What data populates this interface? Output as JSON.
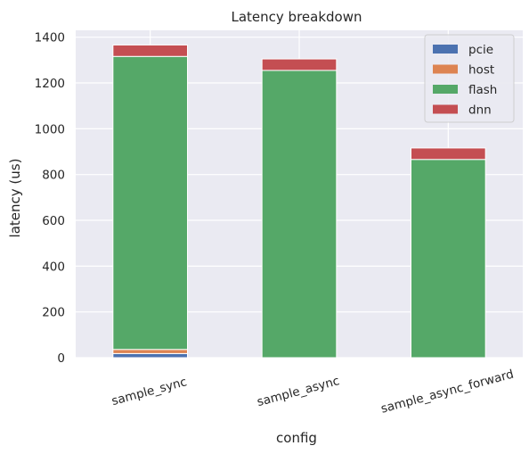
{
  "chart_data": {
    "type": "bar",
    "stacked": true,
    "title": "Latency breakdown",
    "xlabel": "config",
    "ylabel": "latency (us)",
    "categories": [
      "sample_sync",
      "sample_async",
      "sample_async_forward"
    ],
    "series": [
      {
        "name": "pcie",
        "color": "#4c72b0",
        "values": [
          18,
          0,
          0
        ]
      },
      {
        "name": "host",
        "color": "#dd8452",
        "values": [
          18,
          0,
          0
        ]
      },
      {
        "name": "flash",
        "color": "#55a868",
        "values": [
          1280,
          1255,
          866
        ]
      },
      {
        "name": "dnn",
        "color": "#c44e52",
        "values": [
          50,
          50,
          50
        ]
      }
    ],
    "ylim": [
      0,
      1430
    ],
    "yticks": [
      0,
      200,
      400,
      600,
      800,
      1000,
      1200,
      1400
    ],
    "grid": true,
    "legend_position": "top-right",
    "background_color": "#eaeaf2",
    "xtick_rotation": -15
  }
}
